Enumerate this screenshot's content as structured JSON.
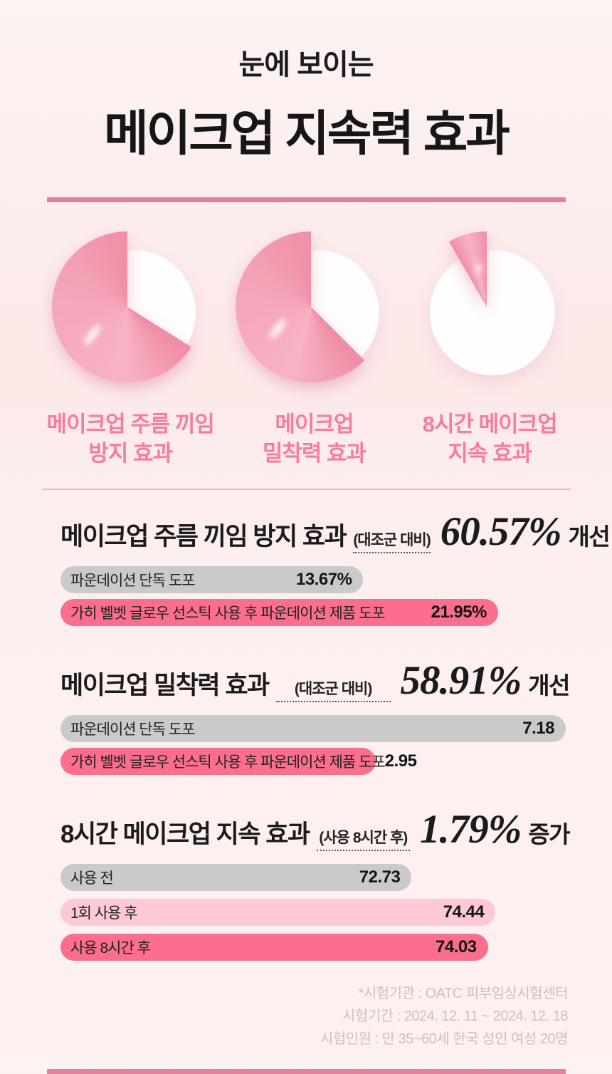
{
  "title": {
    "small": "눈에 보이는",
    "big": "메이크업 지속력 효과"
  },
  "colors": {
    "accent_pink": "#fc6e8e",
    "light_pink_bar": "#fcc9d5",
    "gray_bar": "#cbcaca",
    "divider_pink": "#e1839e",
    "thin_divider_pink": "#eda4b7",
    "label_pink": "#f97c9c",
    "pie_fill_dark": "#ef8fa7",
    "pie_fill_mid": "#f8b3c3",
    "pie_fill_light": "#f4a2b6",
    "footnote_gray": "#d2bdbb",
    "background": "#fdf1f0"
  },
  "pies": [
    {
      "label": [
        "메이크업 주름 끼임",
        "방지 효과"
      ],
      "gap_start_deg": 0,
      "gap_end_deg": 122
    },
    {
      "label": [
        "메이크업",
        "밀착력 효과"
      ],
      "gap_start_deg": 0,
      "gap_end_deg": 135
    },
    {
      "label": [
        "8시간 메이크업",
        "지속 효과"
      ],
      "wedge_start_deg": -30,
      "wedge_end_deg": 0
    }
  ],
  "sections": [
    {
      "heading": "메이크업 주름 끼임 방지 효과",
      "condition": "(대조군 대비)",
      "value": "60.57%",
      "suffix": "개선",
      "bars": [
        {
          "label": "파운데이션 단독 도포",
          "value": "13.67%",
          "color": "gray_bar",
          "width_pct": 59.5
        },
        {
          "label": "가히 벨벳 글로우 선스틱 사용 후 파운데이션 제품 도포",
          "value": "21.95%",
          "color": "accent_pink",
          "width_pct": 86
        }
      ]
    },
    {
      "heading": "메이크업 밀착력 효과",
      "condition": "(대조군 대비)",
      "value": "58.91%",
      "suffix": "개선",
      "bars": [
        {
          "label": "파운데이션 단독 도포",
          "value": "7.18",
          "color": "gray_bar",
          "width_pct": 99.3
        },
        {
          "label": "가히 벨벳 글로우 선스틱 사용 후 파운데이션 제품 도포",
          "value": "2.95",
          "color": "accent_pink",
          "width_pct": 62
        }
      ]
    },
    {
      "heading": "8시간 메이크업 지속 효과",
      "condition": "(사용 8시간 후)",
      "value": "1.79%",
      "suffix": "증가",
      "bars": [
        {
          "label": "사용 전",
          "value": "72.73",
          "color": "gray_bar",
          "width_pct": 69
        },
        {
          "label": "1회 사용 후",
          "value": "74.44",
          "color": "light_pink_bar",
          "width_pct": 85.5
        },
        {
          "label": "사용 8시간 후",
          "value": "74.03",
          "color": "accent_pink",
          "width_pct": 84
        }
      ]
    }
  ],
  "footnotes": [
    "*시험기관 : OATC 피부임상시험센터",
    "시험기간 : 2024. 12. 11 ~ 2024. 12. 18",
    "시험인원 : 만 35~60세 한국 성인 여성 20명"
  ],
  "chart_data": [
    {
      "type": "pie",
      "title": "메이크업 주름 끼임 방지 효과",
      "filled_pct": 66,
      "note": "decorative pink pie, missing wedge at upper right (0°–122° from top)"
    },
    {
      "type": "pie",
      "title": "메이크업 밀착력 효과",
      "filled_pct": 62,
      "note": "decorative pink pie, missing wedge at upper right (0°–135° from top)"
    },
    {
      "type": "pie",
      "title": "8시간 메이크업 지속 효과",
      "filled_pct": 8,
      "note": "mostly white circle with small pink sliver just left of 12 o'clock"
    },
    {
      "type": "bar",
      "title": "메이크업 주름 끼임 방지 효과",
      "annotation": "(대조군 대비) 60.57% 개선",
      "categories": [
        "파운데이션 단독 도포",
        "가히 벨벳 글로우 선스틱 사용 후 파운데이션 제품 도포"
      ],
      "values": [
        13.67,
        21.95
      ],
      "unit": "%",
      "orientation": "horizontal"
    },
    {
      "type": "bar",
      "title": "메이크업 밀착력 효과",
      "annotation": "(대조군 대비) 58.91% 개선",
      "categories": [
        "파운데이션 단독 도포",
        "가히 벨벳 글로우 선스틱 사용 후 파운데이션 제품 도포"
      ],
      "values": [
        7.18,
        2.95
      ],
      "orientation": "horizontal"
    },
    {
      "type": "bar",
      "title": "8시간 메이크업 지속 효과",
      "annotation": "(사용 8시간 후) 1.79% 증가",
      "categories": [
        "사용 전",
        "1회 사용 후",
        "사용 8시간 후"
      ],
      "values": [
        72.73,
        74.44,
        74.03
      ],
      "orientation": "horizontal"
    }
  ]
}
